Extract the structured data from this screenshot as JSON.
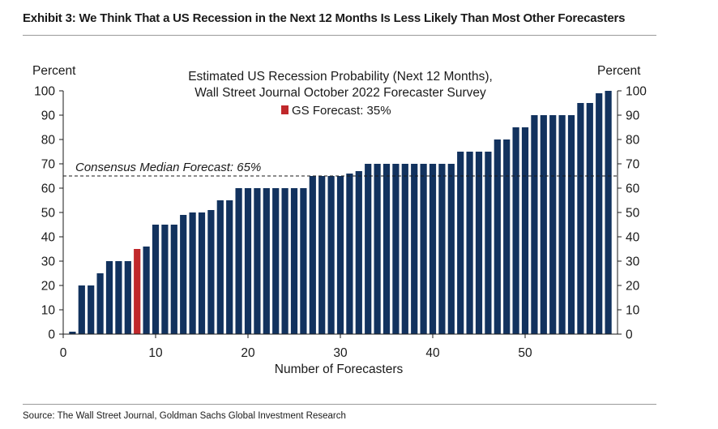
{
  "exhibit_title": "Exhibit 3: We Think That a US Recession in the Next 12 Months Is Less Likely Than Most Other Forecasters",
  "source": "Source: The Wall Street Journal, Goldman Sachs Global Investment Research",
  "colors": {
    "bar": "#12325e",
    "highlight": "#c0282b"
  },
  "chart_data": {
    "type": "bar",
    "title": "Estimated US Recession Probability (Next 12 Months),",
    "subtitle": "Wall Street Journal October 2022 Forecaster Survey",
    "legend": {
      "label": "GS Forecast: 35%",
      "color": "#c0282b",
      "placement": "top-center"
    },
    "xlabel": "Number of Forecasters",
    "ylabel_left": "Percent",
    "ylabel_right": "Percent",
    "xlim": [
      0,
      60
    ],
    "ylim": [
      0,
      100
    ],
    "x_ticks": [
      "0",
      "10",
      "20",
      "30",
      "40",
      "50"
    ],
    "y_ticks": [
      "0",
      "10",
      "20",
      "30",
      "40",
      "50",
      "60",
      "70",
      "80",
      "90",
      "100"
    ],
    "grid": false,
    "reference_line": {
      "value": 65,
      "label": "Consensus Median Forecast: 65%",
      "style": "dashed"
    },
    "highlight_index": 7,
    "x": [
      1,
      2,
      3,
      4,
      5,
      6,
      7,
      8,
      9,
      10,
      11,
      12,
      13,
      14,
      15,
      16,
      17,
      18,
      19,
      20,
      21,
      22,
      23,
      24,
      25,
      26,
      27,
      28,
      29,
      30,
      31,
      32,
      33,
      34,
      35,
      36,
      37,
      38,
      39,
      40,
      41,
      42,
      43,
      44,
      45,
      46,
      47,
      48,
      49,
      50,
      51,
      52,
      53,
      54,
      55,
      56,
      57,
      58,
      59
    ],
    "values": [
      1,
      20,
      20,
      25,
      30,
      30,
      30,
      35,
      36,
      45,
      45,
      45,
      49,
      50,
      50,
      51,
      55,
      55,
      60,
      60,
      60,
      60,
      60,
      60,
      60,
      60,
      65,
      65,
      65,
      65,
      66,
      67,
      70,
      70,
      70,
      70,
      70,
      70,
      70,
      70,
      70,
      70,
      75,
      75,
      75,
      75,
      80,
      80,
      85,
      85,
      90,
      90,
      90,
      90,
      90,
      95,
      95,
      99,
      100
    ]
  }
}
